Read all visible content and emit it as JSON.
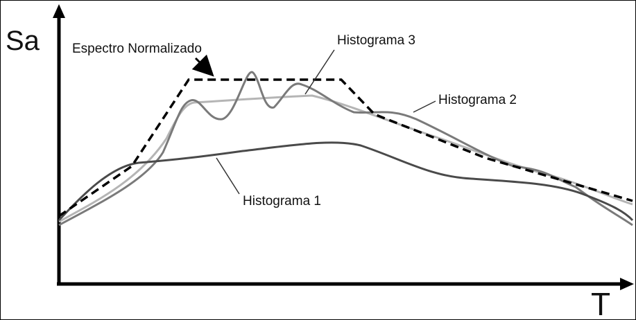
{
  "axes": {
    "y_label": "Sa",
    "x_label": "T"
  },
  "labels": {
    "normalized": "Espectro Normalizado",
    "hist1": "Histograma 1",
    "hist2": "Histograma 2",
    "hist3": "Histograma 3"
  }
}
